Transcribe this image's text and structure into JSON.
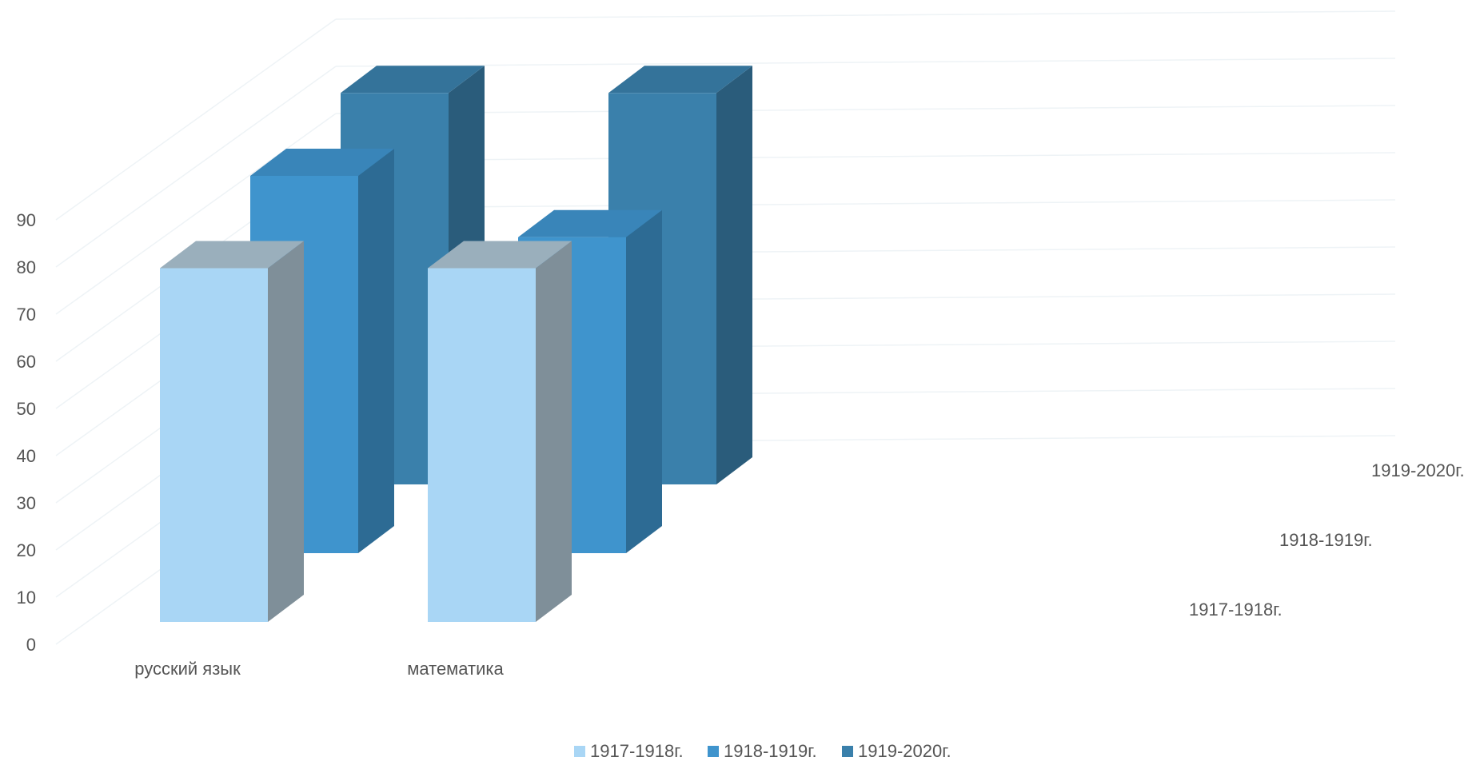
{
  "chart_data": {
    "type": "bar3d",
    "categories": [
      "русский язык",
      "математика"
    ],
    "series": [
      {
        "name": "1917-1918г.",
        "values": [
          75,
          75
        ],
        "color": "#a9d6f5"
      },
      {
        "name": "1918-1919г.",
        "values": [
          80,
          67
        ],
        "color": "#3f94cd"
      },
      {
        "name": "1919-2020г.",
        "values": [
          83,
          83
        ],
        "color": "#3a80ab"
      }
    ],
    "yticks": [
      0,
      10,
      20,
      30,
      40,
      50,
      60,
      70,
      80,
      90
    ],
    "ylim": [
      0,
      90
    ],
    "grid": true,
    "legend_position": "bottom",
    "depth_axis_labels": [
      "1917-1918г.",
      "1918-1919г.",
      "1919-2020г."
    ]
  }
}
